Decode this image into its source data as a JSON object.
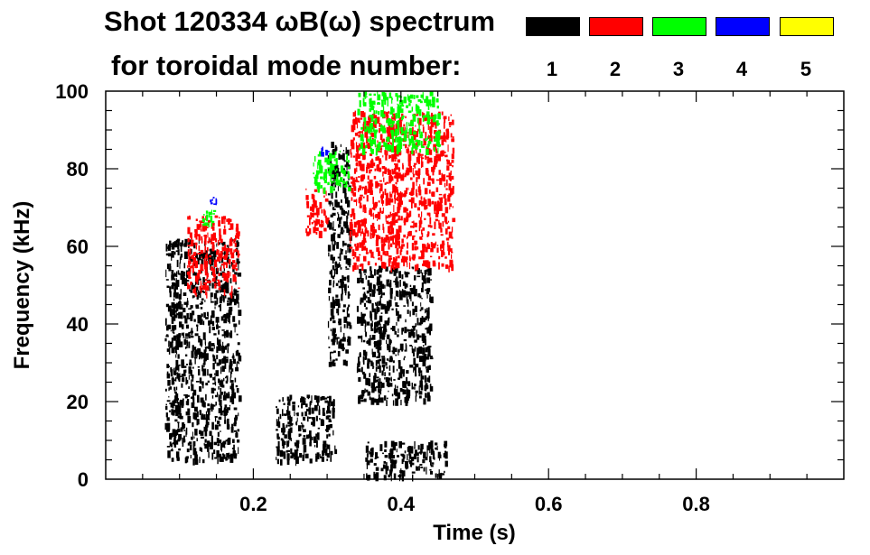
{
  "chart_data": {
    "type": "scatter",
    "title": "Shot 120334 ωB(ω) spectrum",
    "subtitle": "for toroidal mode number:",
    "xlabel": "Time (s)",
    "ylabel": "Frequency (kHz)",
    "xlim": [
      0.0,
      1.0
    ],
    "ylim": [
      0,
      100
    ],
    "x_ticks": [
      0.2,
      0.4,
      0.6,
      0.8
    ],
    "y_ticks": [
      0,
      20,
      40,
      60,
      80,
      100
    ],
    "grid": false,
    "legend_position": "top-right",
    "legend": [
      {
        "label": "1",
        "color": "#000000"
      },
      {
        "label": "2",
        "color": "#ff0000"
      },
      {
        "label": "3",
        "color": "#00ff00"
      },
      {
        "label": "4",
        "color": "#0000ff"
      },
      {
        "label": "5",
        "color": "#ffff00"
      }
    ],
    "regions": [
      {
        "mode": "1",
        "color": "#000000",
        "t": [
          0.08,
          0.18
        ],
        "f": [
          5,
          62
        ]
      },
      {
        "mode": "1",
        "color": "#000000",
        "t": [
          0.23,
          0.31
        ],
        "f": [
          5,
          22
        ]
      },
      {
        "mode": "1",
        "color": "#000000",
        "t": [
          0.3,
          0.33
        ],
        "f": [
          30,
          87
        ]
      },
      {
        "mode": "1",
        "color": "#000000",
        "t": [
          0.34,
          0.44
        ],
        "f": [
          20,
          55
        ]
      },
      {
        "mode": "1",
        "color": "#000000",
        "t": [
          0.35,
          0.46
        ],
        "f": [
          1,
          10
        ]
      },
      {
        "mode": "2",
        "color": "#ff0000",
        "t": [
          0.11,
          0.18
        ],
        "f": [
          48,
          68
        ]
      },
      {
        "mode": "2",
        "color": "#ff0000",
        "t": [
          0.27,
          0.3
        ],
        "f": [
          63,
          75
        ]
      },
      {
        "mode": "2",
        "color": "#ff0000",
        "t": [
          0.33,
          0.47
        ],
        "f": [
          55,
          95
        ]
      },
      {
        "mode": "3",
        "color": "#00ff00",
        "t": [
          0.13,
          0.15
        ],
        "f": [
          65,
          70
        ]
      },
      {
        "mode": "3",
        "color": "#00ff00",
        "t": [
          0.28,
          0.33
        ],
        "f": [
          75,
          85
        ]
      },
      {
        "mode": "3",
        "color": "#00ff00",
        "t": [
          0.34,
          0.45
        ],
        "f": [
          85,
          100
        ]
      },
      {
        "mode": "4",
        "color": "#0000ff",
        "t": [
          0.14,
          0.15
        ],
        "f": [
          71,
          73
        ]
      },
      {
        "mode": "4",
        "color": "#0000ff",
        "t": [
          0.29,
          0.3
        ],
        "f": [
          84,
          86
        ]
      }
    ]
  }
}
